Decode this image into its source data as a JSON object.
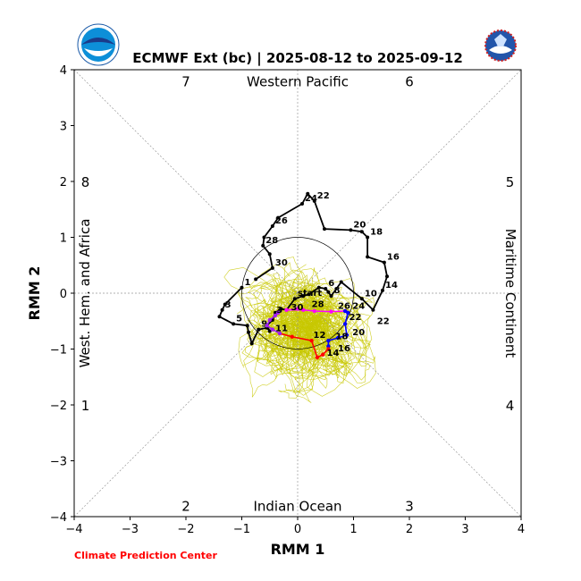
{
  "header": {
    "noaa_logo_text": "NOAA",
    "nws_logo_text": "NATIONAL WEATHER SERVICE"
  },
  "footer": {
    "credit": "Climate Prediction Center"
  },
  "colors": {
    "past_track": "#000000",
    "forecast_segment_1": "#ff00ff",
    "forecast_segment_2": "#0000ff",
    "forecast_segment_3": "#ff0000",
    "forecast_segment_4": "#a020f0",
    "ensemble_members": "#c8c800",
    "credit": "#ff0000"
  },
  "chart_data": {
    "type": "line",
    "title": "ECMWF Ext (bc) | 2025-08-12 to 2025-09-12",
    "xlabel": "RMM 1",
    "ylabel": "RMM 2",
    "xlim": [
      -4,
      4
    ],
    "ylim": [
      -4,
      4
    ],
    "xticks": [
      "−4",
      "−3",
      "−2",
      "−1",
      "0",
      "1",
      "2",
      "3",
      "4"
    ],
    "yticks": [
      "−4",
      "−3",
      "−2",
      "−1",
      "0",
      "1",
      "2",
      "3",
      "4"
    ],
    "unit_circle_radius": 1,
    "grid": false,
    "phase_numbers": [
      {
        "label": "7",
        "x": -2,
        "y": 3.8
      },
      {
        "label": "6",
        "x": 2,
        "y": 3.8
      },
      {
        "label": "8",
        "x": -3.8,
        "y": 2
      },
      {
        "label": "5",
        "x": 3.8,
        "y": 2
      },
      {
        "label": "1",
        "x": -3.8,
        "y": -2
      },
      {
        "label": "4",
        "x": 3.8,
        "y": -2
      },
      {
        "label": "2",
        "x": -2,
        "y": -3.8
      },
      {
        "label": "3",
        "x": 2,
        "y": -3.8
      }
    ],
    "region_labels": {
      "top": "Western Pacific",
      "bottom": "Indian Ocean",
      "left": "West. Hem. and Africa",
      "right": "Maritime Continent"
    },
    "observed": {
      "points": [
        {
          "x": -1.0,
          "y": 0.1,
          "label": "1"
        },
        {
          "x": -1.3,
          "y": -0.2
        },
        {
          "x": -1.35,
          "y": -0.3,
          "label": "3"
        },
        {
          "x": -1.4,
          "y": -0.42
        },
        {
          "x": -1.15,
          "y": -0.55,
          "label": "5"
        },
        {
          "x": -0.9,
          "y": -0.58
        },
        {
          "x": -0.88,
          "y": -0.7
        },
        {
          "x": -0.82,
          "y": -0.9
        },
        {
          "x": -0.7,
          "y": -0.65,
          "label": "9"
        },
        {
          "x": -0.55,
          "y": -0.62
        },
        {
          "x": -0.5,
          "y": -0.68
        },
        {
          "x": -0.55,
          "y": -0.58
        },
        {
          "x": -0.45,
          "y": -0.48
        },
        {
          "x": -0.4,
          "y": -0.35
        },
        {
          "x": -0.3,
          "y": -0.28
        },
        {
          "x": -0.2,
          "y": -0.3
        },
        {
          "x": -0.05,
          "y": -0.1
        },
        {
          "x": 0.1,
          "y": -0.05
        },
        {
          "x": 0.2,
          "y": -0.02
        },
        {
          "x": 0.38,
          "y": 0.1
        },
        {
          "x": 0.5,
          "y": 0.08,
          "label": "6"
        },
        {
          "x": 0.55,
          "y": 0.02
        },
        {
          "x": 0.6,
          "y": -0.05,
          "label": "8"
        },
        {
          "x": 0.78,
          "y": 0.2
        },
        {
          "x": 1.15,
          "y": -0.1,
          "label": "10"
        },
        {
          "x": 1.35,
          "y": -0.3
        },
        {
          "x": 1.52,
          "y": 0.05,
          "label": "14"
        },
        {
          "x": 1.6,
          "y": 0.3
        },
        {
          "x": 1.55,
          "y": 0.55,
          "label": "16"
        },
        {
          "x": 1.25,
          "y": 0.65
        },
        {
          "x": 1.25,
          "y": 1.0,
          "label": "18"
        },
        {
          "x": 1.15,
          "y": 1.1
        },
        {
          "x": 0.95,
          "y": 1.13,
          "label": "20"
        },
        {
          "x": 0.48,
          "y": 1.15
        },
        {
          "x": 0.3,
          "y": 1.65,
          "label": "22"
        },
        {
          "x": 0.18,
          "y": 1.78
        },
        {
          "x": 0.08,
          "y": 1.6,
          "label": "24"
        },
        {
          "x": -0.35,
          "y": 1.35
        },
        {
          "x": -0.45,
          "y": 1.2,
          "label": "26"
        },
        {
          "x": -0.6,
          "y": 1.0
        },
        {
          "x": -0.62,
          "y": 0.85,
          "label": "28"
        },
        {
          "x": -0.5,
          "y": 0.7
        },
        {
          "x": -0.45,
          "y": 0.45,
          "label": "30"
        },
        {
          "x": -0.75,
          "y": 0.25
        }
      ]
    },
    "forecast_labels": [
      {
        "text": "start",
        "x": 0.0,
        "y": -0.05
      },
      {
        "text": "30",
        "x": -0.12,
        "y": -0.3
      },
      {
        "text": "28",
        "x": 0.25,
        "y": -0.25
      },
      {
        "text": "26",
        "x": 0.72,
        "y": -0.28
      },
      {
        "text": "24",
        "x": 0.98,
        "y": -0.28
      },
      {
        "text": "22",
        "x": 0.92,
        "y": -0.48
      },
      {
        "text": "22",
        "x": 1.42,
        "y": -0.55
      },
      {
        "text": "20",
        "x": 0.98,
        "y": -0.75
      },
      {
        "text": "18",
        "x": 0.68,
        "y": -0.82
      },
      {
        "text": "16",
        "x": 0.72,
        "y": -1.04
      },
      {
        "text": "14",
        "x": 0.52,
        "y": -1.12
      },
      {
        "text": "12",
        "x": 0.28,
        "y": -0.8
      },
      {
        "text": "11",
        "x": -0.4,
        "y": -0.68
      },
      {
        "text": "3",
        "x": -0.38,
        "y": -0.35
      }
    ],
    "forecast_ensemble_mean": [
      {
        "name": "",
        "color": "#ff00ff",
        "points": [
          [
            0.0,
            -0.28
          ],
          [
            -0.2,
            -0.3
          ],
          [
            0.1,
            -0.3
          ],
          [
            0.3,
            -0.32
          ],
          [
            0.6,
            -0.33
          ],
          [
            0.85,
            -0.32
          ]
        ]
      },
      {
        "name": "",
        "color": "#0000ff",
        "points": [
          [
            0.85,
            -0.32
          ],
          [
            0.9,
            -0.35
          ],
          [
            0.85,
            -0.55
          ],
          [
            0.88,
            -0.75
          ],
          [
            0.72,
            -0.8
          ],
          [
            0.55,
            -0.85
          ],
          [
            0.55,
            -0.95
          ]
        ]
      },
      {
        "name": "",
        "color": "#ff0000",
        "points": [
          [
            0.55,
            -1.0
          ],
          [
            0.45,
            -1.1
          ],
          [
            0.35,
            -1.15
          ],
          [
            0.25,
            -0.85
          ],
          [
            -0.1,
            -0.78
          ],
          [
            -0.32,
            -0.72
          ]
        ]
      },
      {
        "name": "",
        "color": "#a020f0",
        "points": [
          [
            -0.32,
            -0.72
          ],
          [
            -0.45,
            -0.65
          ],
          [
            -0.55,
            -0.58
          ],
          [
            -0.5,
            -0.48
          ],
          [
            -0.4,
            -0.4
          ],
          [
            -0.35,
            -0.35
          ]
        ]
      }
    ]
  }
}
